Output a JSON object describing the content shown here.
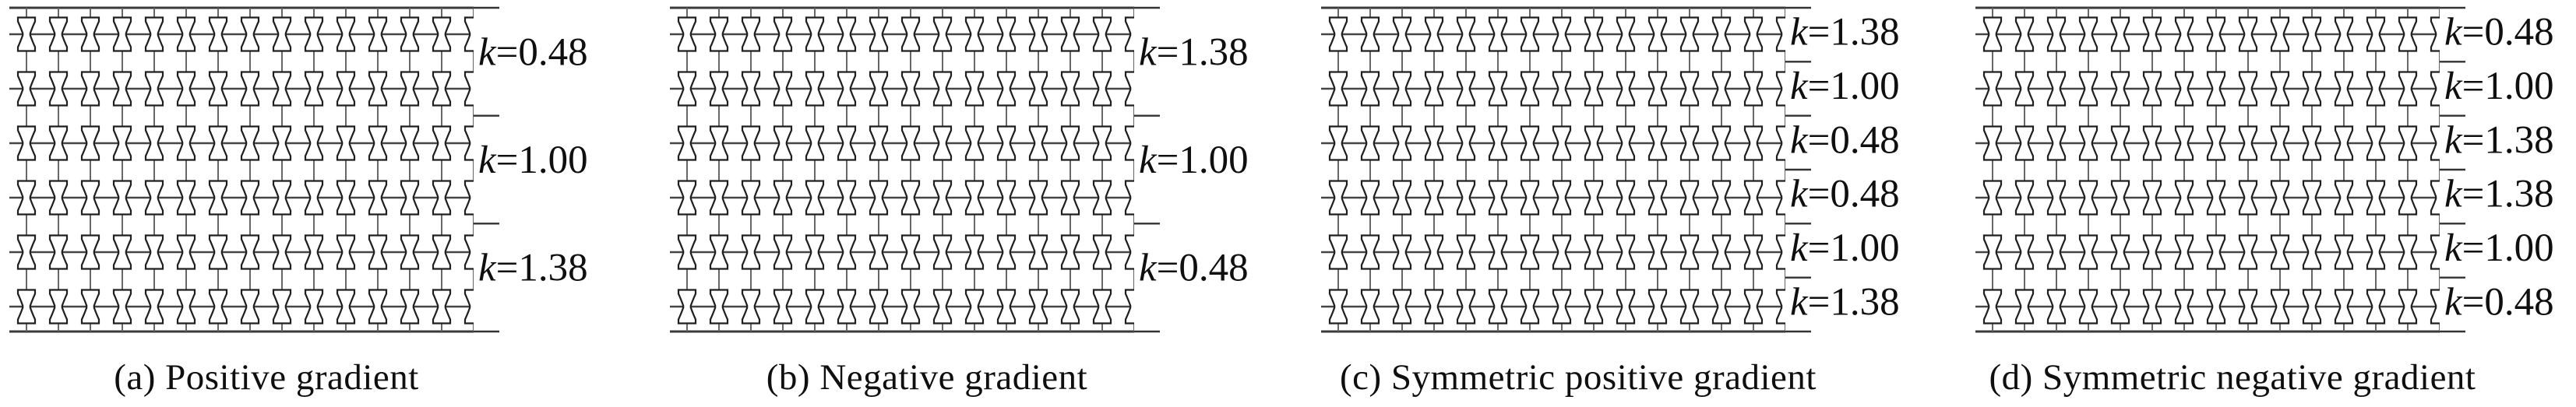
{
  "figure": {
    "description": "Four graded bowtie-honeycomb lattice panels, each 6 cell rows tall and 14 full columns wide with a half column cut at the right edge; short tick marks on the right edge delimit row groups labelled with k values",
    "lattice": {
      "rows": 6,
      "full_columns": 14,
      "partial_right_columns": 1
    },
    "colors": {
      "background": "#ffffff",
      "border_line": "#3a3a3a",
      "waist_line": "#454545",
      "strut": "#5f5f5f",
      "cell_stroke": "#1f1f1f",
      "cell_fill": "#ffffff",
      "tick": "#333333",
      "text": "#0f0f0f"
    },
    "panels": [
      {
        "id": "a",
        "caption": "(a) Positive gradient",
        "k_labels": [
          "k=0.48",
          "k=1.00",
          "k=1.38"
        ]
      },
      {
        "id": "b",
        "caption": "(b) Negative gradient",
        "k_labels": [
          "k=1.38",
          "k=1.00",
          "k=0.48"
        ]
      },
      {
        "id": "c",
        "caption": "(c) Symmetric positive gradient",
        "k_labels": [
          "k=1.38",
          "k=1.00",
          "k=0.48",
          "k=0.48",
          "k=1.00",
          "k=1.38"
        ]
      },
      {
        "id": "d",
        "caption": "(d) Symmetric negative gradient",
        "k_labels": [
          "k=0.48",
          "k=1.00",
          "k=1.38",
          "k=1.38",
          "k=1.00",
          "k=0.48"
        ]
      }
    ]
  }
}
